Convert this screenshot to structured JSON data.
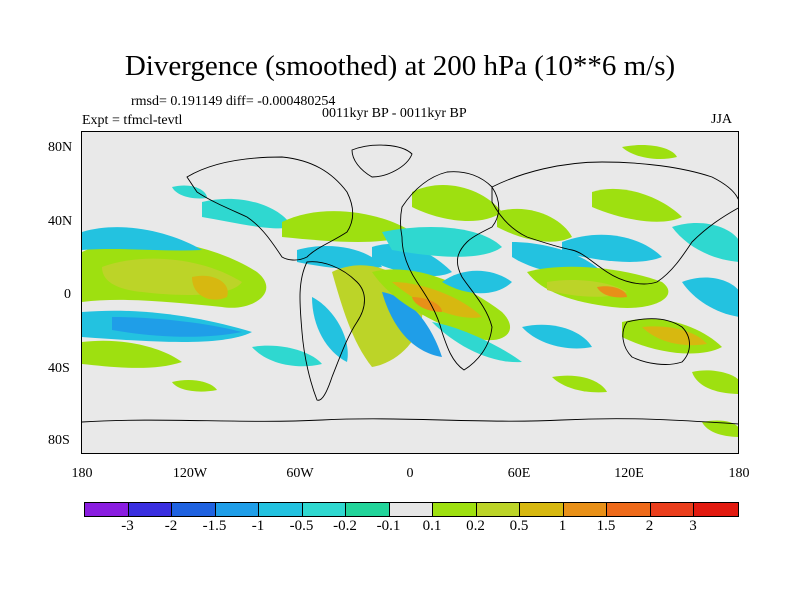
{
  "title": "Divergence (smoothed) at 200 hPa (10**6 m/s)",
  "stats": "rmsd= 0.191149 diff= -0.000480254",
  "case": "0011kyr BP - 0011kyr BP",
  "expt": "Expt = tfmcl-tevtl",
  "season": "JJA",
  "lat_labels": [
    "80N",
    "40N",
    "0",
    "40S",
    "80S"
  ],
  "lon_labels": [
    "180",
    "120W",
    "60W",
    "0",
    "60E",
    "120E",
    "180"
  ],
  "colorbar": {
    "labels": [
      "-3",
      "-2",
      "-1.5",
      "-1",
      "-0.5",
      "-0.2",
      "-0.1",
      "0.1",
      "0.2",
      "0.5",
      "1",
      "1.5",
      "2",
      "3"
    ],
    "colors": [
      "#8a1de0",
      "#3a2fe0",
      "#1f62e0",
      "#1f9ee8",
      "#23c2e0",
      "#2fd8d0",
      "#22d49a",
      "#e6e6e6",
      "#9ee010",
      "#bcd428",
      "#d7b810",
      "#e89018",
      "#ee6a1a",
      "#ea3e1c",
      "#e21a10"
    ]
  },
  "colors": {
    "background": "#e9e9e9",
    "neg_weak": "#2fd8d0",
    "neg_med": "#23c2e0",
    "pos_weak": "#9ee010",
    "pos_med": "#bcd428",
    "pos_strong": "#d7b810",
    "pos_max": "#e89018"
  }
}
